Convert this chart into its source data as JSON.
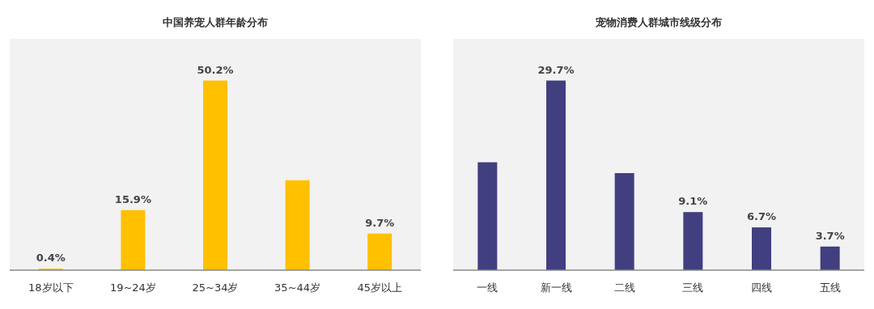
{
  "chart_data": [
    {
      "type": "bar",
      "title": "中国养宠人群年龄分布",
      "categories": [
        "18岁以下",
        "19~24岁",
        "25~34岁",
        "35~44岁",
        "45岁以上"
      ],
      "values": [
        0.4,
        15.9,
        50.2,
        23.8,
        9.7
      ],
      "color": "#ffc000",
      "value_labels": [
        "0.4%",
        "15.9%",
        "50.2%",
        null,
        "9.7%"
      ]
    },
    {
      "type": "bar",
      "title": "宠物消费人群城市线级分布",
      "categories": [
        "一线",
        "新一线",
        "二线",
        "三线",
        "四线",
        "五线"
      ],
      "values": [
        16.9,
        29.7,
        15.2,
        9.1,
        6.7,
        3.7
      ],
      "color": "#413f80",
      "value_labels": [
        null,
        "29.7%",
        null,
        "9.1%",
        "6.7%",
        "3.7%"
      ]
    }
  ]
}
